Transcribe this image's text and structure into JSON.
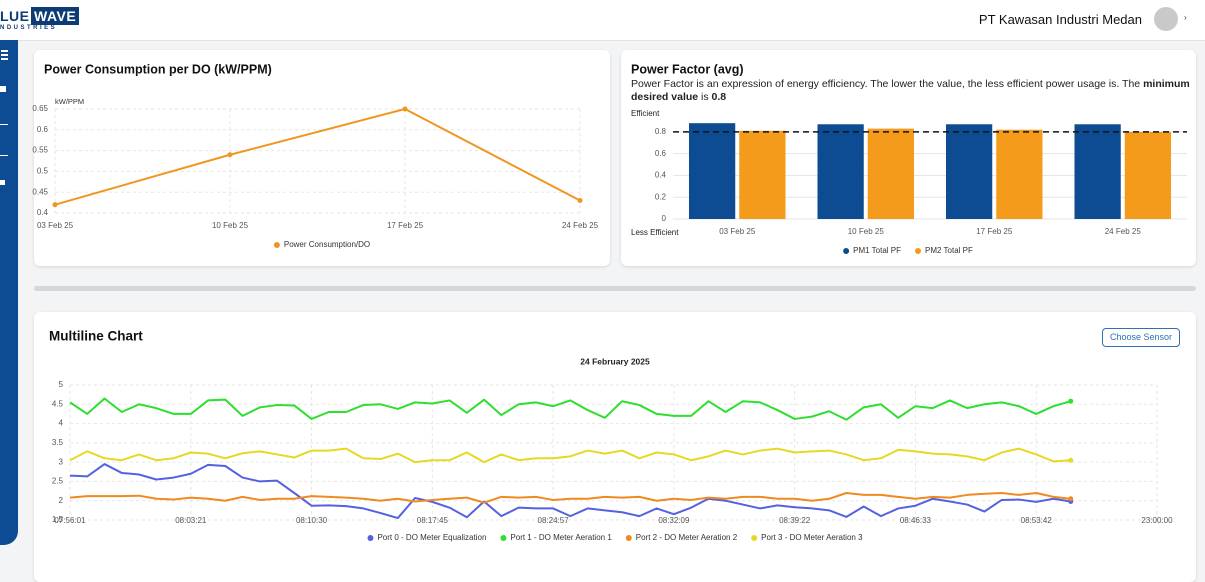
{
  "header": {
    "logo": {
      "left": "LUE",
      "box": "WAVE",
      "sub": "NDUSTRIES"
    },
    "company": "PT Kawasan Industri Medan"
  },
  "chart_data": [
    {
      "type": "line",
      "title": "Power Consumption per DO (kW/PPM)",
      "ylabel": "kW/PPM",
      "categories": [
        "03 Feb 25",
        "10 Feb 25",
        "17 Feb 25",
        "24 Feb 25"
      ],
      "series": [
        {
          "name": "Power Consumption/DO",
          "color": "#f0961f",
          "values": [
            0.42,
            0.54,
            0.65,
            0.43
          ]
        }
      ],
      "ylim": [
        0.4,
        0.65
      ],
      "yticks": [
        0.4,
        0.45,
        0.5,
        0.55,
        0.6,
        0.65
      ],
      "grid": true,
      "markers": "all"
    },
    {
      "type": "bar",
      "title": "Power Factor (avg)",
      "subtitle": [
        "Power Factor is an expression of energy efficiency. The lower the value, the less efficient power usage is. The ",
        "minimum desired value",
        " is ",
        "0.8"
      ],
      "top_label": "Efficient",
      "bottom_label": "Less Efficient",
      "categories": [
        "03 Feb 25",
        "10 Feb 25",
        "17 Feb 25",
        "24 Feb 25"
      ],
      "series": [
        {
          "name": "PM1 Total PF",
          "color": "#0d4c92",
          "values": [
            0.88,
            0.87,
            0.87,
            0.87
          ]
        },
        {
          "name": "PM2 Total PF",
          "color": "#f49b1b",
          "values": [
            0.81,
            0.83,
            0.82,
            0.8
          ]
        }
      ],
      "threshold": 0.8,
      "ylim": [
        0,
        0.9
      ],
      "yticks": [
        0,
        0.2,
        0.4,
        0.6,
        0.8
      ],
      "grid": true
    },
    {
      "type": "line",
      "title": "Multiline Chart",
      "subtitle": "24 February 2025",
      "button": "Choose Sensor",
      "categories": [
        "07:56:01",
        null,
        null,
        null,
        null,
        null,
        null,
        "08:03:21",
        null,
        null,
        null,
        null,
        null,
        null,
        "08:10:30",
        null,
        null,
        null,
        null,
        null,
        null,
        "08:17:45",
        null,
        null,
        null,
        null,
        null,
        null,
        "08:24:57",
        null,
        null,
        null,
        null,
        null,
        null,
        "08:32:09",
        null,
        null,
        null,
        null,
        null,
        null,
        "08:39:22",
        null,
        null,
        null,
        null,
        null,
        null,
        "08:46:33",
        null,
        null,
        null,
        null,
        null,
        null,
        "08:53:42",
        null,
        null,
        null,
        null,
        null,
        null,
        "23:00:00"
      ],
      "series": [
        {
          "name": "Port 0 - DO Meter Equalization",
          "color": "#5561e0",
          "values": [
            2.65,
            2.63,
            2.95,
            2.72,
            2.68,
            2.55,
            2.6,
            2.7,
            2.93,
            2.9,
            2.6,
            2.5,
            2.52,
            2.2,
            1.87,
            1.88,
            1.86,
            1.8,
            1.68,
            1.55,
            2.07,
            1.97,
            1.82,
            1.57,
            1.98,
            1.6,
            1.82,
            1.8,
            1.8,
            1.6,
            1.8,
            1.75,
            1.7,
            1.6,
            1.8,
            1.65,
            1.82,
            2.05,
            2.0,
            1.9,
            1.8,
            1.88,
            1.83,
            1.8,
            1.75,
            1.58,
            1.85,
            1.6,
            1.8,
            1.87,
            2.05,
            1.98,
            1.9,
            1.72,
            2.02,
            2.03,
            1.97,
            2.05,
            1.98,
            null,
            null,
            null,
            null,
            null
          ]
        },
        {
          "name": "Port 1 - DO Meter Aeration 1",
          "color": "#2fde2f",
          "values": [
            4.55,
            4.25,
            4.65,
            4.3,
            4.5,
            4.4,
            4.25,
            4.25,
            4.6,
            4.62,
            4.2,
            4.42,
            4.48,
            4.47,
            4.12,
            4.3,
            4.3,
            4.48,
            4.5,
            4.38,
            4.55,
            4.52,
            4.6,
            4.28,
            4.62,
            4.22,
            4.5,
            4.55,
            4.45,
            4.6,
            4.35,
            4.15,
            4.58,
            4.48,
            4.25,
            4.2,
            4.2,
            4.58,
            4.3,
            4.58,
            4.55,
            4.35,
            4.12,
            4.18,
            4.32,
            4.1,
            4.42,
            4.5,
            4.15,
            4.45,
            4.4,
            4.6,
            4.4,
            4.5,
            4.55,
            4.45,
            4.25,
            4.45,
            4.58,
            null,
            null,
            null,
            null,
            null
          ]
        },
        {
          "name": "Port 2 - DO Meter Aeration 2",
          "color": "#ee8a1f",
          "values": [
            2.08,
            2.12,
            2.12,
            2.12,
            2.13,
            2.05,
            2.03,
            2.08,
            2.05,
            2.0,
            2.1,
            2.02,
            2.05,
            2.05,
            2.12,
            2.1,
            2.08,
            2.05,
            2.0,
            2.05,
            1.98,
            2.02,
            2.05,
            2.08,
            1.95,
            2.1,
            2.08,
            2.1,
            2.02,
            2.05,
            2.05,
            2.1,
            2.08,
            2.1,
            2.0,
            2.05,
            2.02,
            2.08,
            2.05,
            2.1,
            2.1,
            2.05,
            2.05,
            2.0,
            2.05,
            2.2,
            2.15,
            2.15,
            2.1,
            2.05,
            2.1,
            2.08,
            2.15,
            2.18,
            2.2,
            2.15,
            2.2,
            2.1,
            2.05,
            null,
            null,
            null,
            null,
            null
          ]
        },
        {
          "name": "Port 3 - DO Meter Aeration 3",
          "color": "#e6d823",
          "values": [
            3.05,
            3.28,
            3.1,
            3.05,
            3.2,
            3.05,
            3.1,
            3.25,
            3.22,
            3.1,
            3.23,
            3.28,
            3.2,
            3.12,
            3.3,
            3.3,
            3.35,
            3.1,
            3.08,
            3.22,
            3.0,
            3.05,
            3.05,
            3.25,
            3.0,
            3.2,
            3.05,
            3.1,
            3.1,
            3.15,
            3.3,
            3.22,
            3.3,
            3.1,
            3.25,
            3.2,
            3.05,
            3.15,
            3.3,
            3.2,
            3.3,
            3.35,
            3.25,
            3.28,
            3.3,
            3.2,
            3.05,
            3.1,
            3.32,
            3.28,
            3.22,
            3.2,
            3.15,
            3.05,
            3.25,
            3.35,
            3.2,
            3.02,
            3.05,
            null,
            null,
            null,
            null,
            null
          ]
        }
      ],
      "ylim": [
        1.5,
        5
      ],
      "yticks": [
        1.5,
        2,
        2.5,
        3,
        3.5,
        4,
        4.5,
        5
      ],
      "grid": true,
      "markers": "last"
    }
  ]
}
